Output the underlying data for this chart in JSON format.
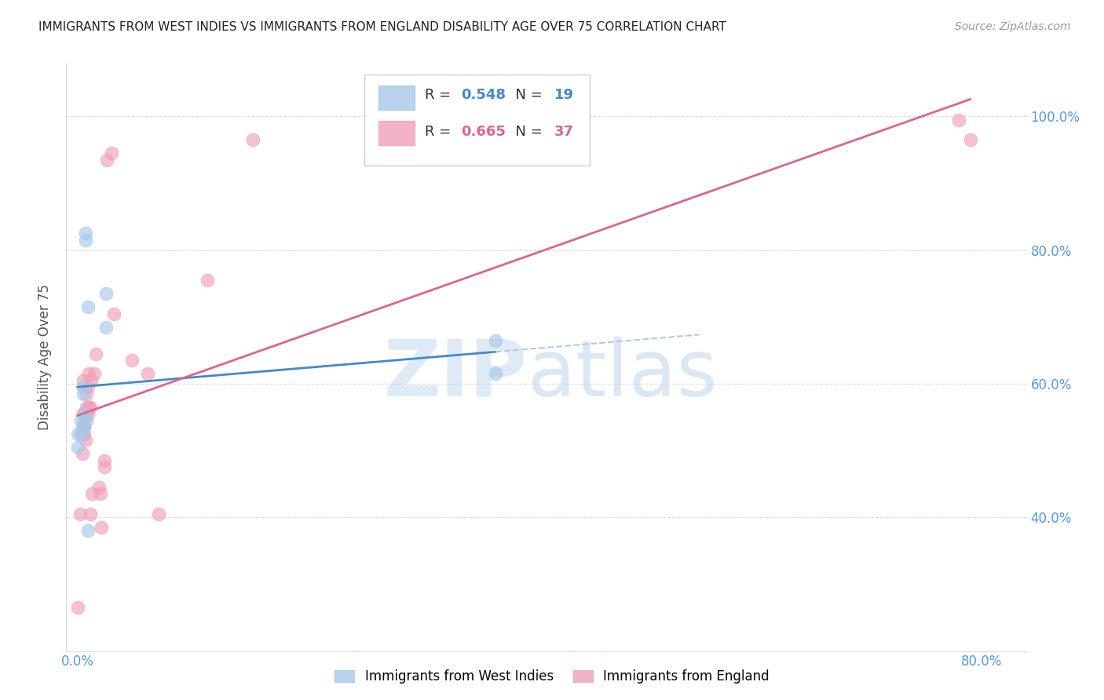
{
  "title": "IMMIGRANTS FROM WEST INDIES VS IMMIGRANTS FROM ENGLAND DISABILITY AGE OVER 75 CORRELATION CHART",
  "source": "Source: ZipAtlas.com",
  "ylabel": "Disability Age Over 75",
  "ytick_labels": [
    "100.0%",
    "80.0%",
    "60.0%",
    "40.0%"
  ],
  "ytick_values": [
    1.0,
    0.8,
    0.6,
    0.4
  ],
  "xtick_labels": [
    "0.0%",
    "80.0%"
  ],
  "xtick_values": [
    0.0,
    0.8
  ],
  "xlim": [
    -0.01,
    0.84
  ],
  "ylim": [
    0.2,
    1.08
  ],
  "r_blue": "0.548",
  "n_blue": "19",
  "r_pink": "0.665",
  "n_pink": "37",
  "legend_blue": "Immigrants from West Indies",
  "legend_pink": "Immigrants from England",
  "title_color": "#222222",
  "source_color": "#999999",
  "blue_scatter_color": "#a8c8e8",
  "pink_scatter_color": "#f0a0b8",
  "blue_line_color": "#4488cc",
  "pink_line_color": "#dd6688",
  "dashed_color": "#aaccee",
  "tick_label_color": "#5599dd",
  "grid_color": "#dddddd",
  "background_color": "#ffffff",
  "blue_scatter_x": [
    0.0,
    0.0,
    0.003,
    0.004,
    0.004,
    0.005,
    0.005,
    0.006,
    0.006,
    0.006,
    0.007,
    0.007,
    0.008,
    0.009,
    0.009,
    0.025,
    0.025,
    0.37,
    0.37
  ],
  "blue_scatter_y": [
    0.525,
    0.505,
    0.545,
    0.535,
    0.525,
    0.595,
    0.585,
    0.555,
    0.545,
    0.535,
    0.825,
    0.815,
    0.545,
    0.715,
    0.38,
    0.735,
    0.685,
    0.665,
    0.615
  ],
  "pink_scatter_x": [
    0.0,
    0.002,
    0.003,
    0.004,
    0.005,
    0.005,
    0.006,
    0.006,
    0.007,
    0.007,
    0.008,
    0.008,
    0.009,
    0.009,
    0.01,
    0.01,
    0.011,
    0.011,
    0.012,
    0.013,
    0.015,
    0.016,
    0.019,
    0.02,
    0.021,
    0.024,
    0.024,
    0.026,
    0.03,
    0.032,
    0.048,
    0.062,
    0.072,
    0.115,
    0.155,
    0.78,
    0.79
  ],
  "pink_scatter_y": [
    0.265,
    0.405,
    0.525,
    0.495,
    0.555,
    0.605,
    0.535,
    0.525,
    0.555,
    0.515,
    0.585,
    0.565,
    0.555,
    0.595,
    0.565,
    0.615,
    0.565,
    0.405,
    0.605,
    0.435,
    0.615,
    0.645,
    0.445,
    0.435,
    0.385,
    0.485,
    0.475,
    0.935,
    0.945,
    0.705,
    0.635,
    0.615,
    0.405,
    0.755,
    0.965,
    0.995,
    0.965
  ],
  "watermark_zip_color": "#c8dff0",
  "watermark_atlas_color": "#b8d0e8"
}
